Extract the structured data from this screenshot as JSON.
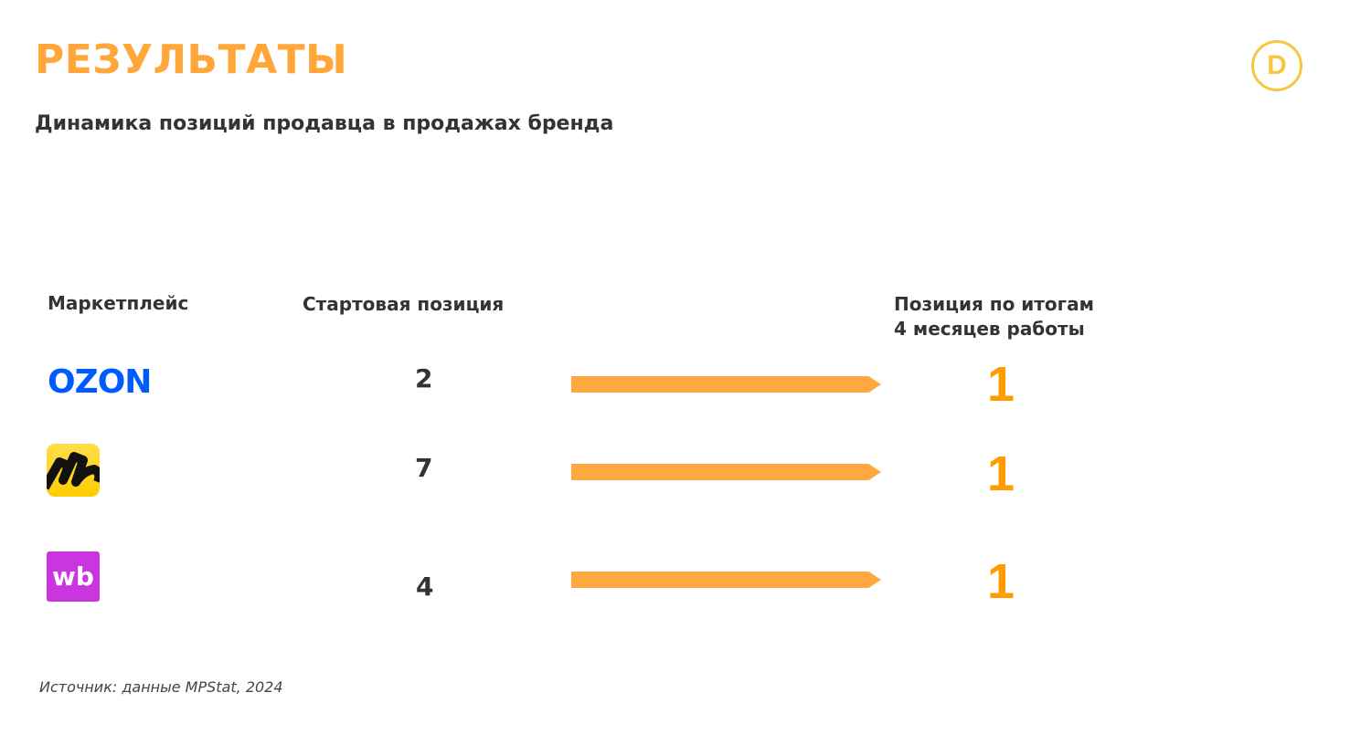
{
  "title": "РЕЗУЛЬТАТЫ",
  "subtitle": "Динамика позиций продавца в продажах бренда",
  "logo": {
    "letter": "D",
    "color": "#f5c93b"
  },
  "table": {
    "headers": [
      "Маркетплейс",
      "Стартовая позиция",
      "Позиция по итогам 4 месяцев работы"
    ],
    "header_line1": "Позиция по итогам",
    "header_line2": "4 месяцев работы",
    "rows": [
      {
        "marketplace": "OZON",
        "logo_color": "#005bff",
        "start": "2",
        "final": "1"
      },
      {
        "marketplace": "Яндекс Маркет",
        "logo_color": "#ffd633",
        "start": "7",
        "final": "1"
      },
      {
        "marketplace": "wb",
        "logo_color": "#cb35e0",
        "start": "4",
        "final": "1"
      }
    ]
  },
  "accent_color": "#ffa73a",
  "source": "Источник: данные MPStat, 2024"
}
